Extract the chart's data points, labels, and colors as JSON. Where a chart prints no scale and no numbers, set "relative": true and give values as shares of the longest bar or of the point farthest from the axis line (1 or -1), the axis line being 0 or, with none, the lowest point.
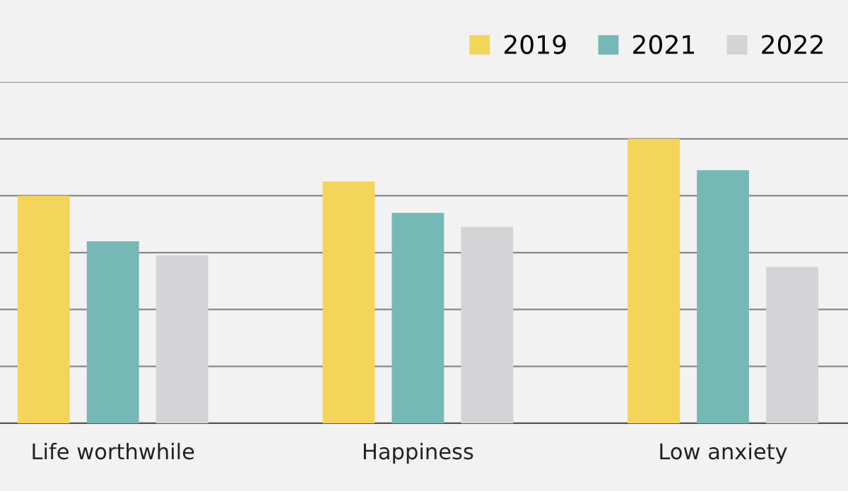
{
  "chart_data": {
    "type": "bar",
    "relative": true,
    "categories": [
      "Life worthwhile",
      "Happiness",
      "Low anxiety"
    ],
    "series": [
      {
        "name": "2019",
        "color": "#f3d55a",
        "values": [
          0.8,
          0.85,
          1
        ]
      },
      {
        "name": "2021",
        "color": "#76b8b6",
        "values": [
          0.64,
          0.74,
          0.89
        ]
      },
      {
        "name": "2022",
        "color": "#d4d4d6",
        "values": [
          0.59,
          0.69,
          0.55
        ]
      }
    ],
    "grid": "y",
    "legend": "top right"
  }
}
